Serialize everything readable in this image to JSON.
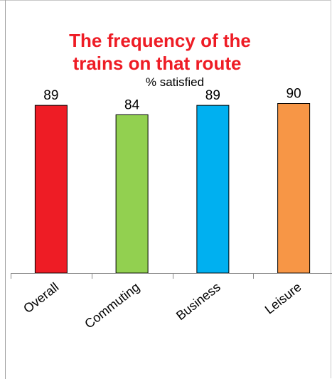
{
  "chart_data": {
    "type": "bar",
    "title": "The frequency of the trains on that route",
    "title_lines": [
      "The frequency of the",
      "trains on that route"
    ],
    "subtitle": "% satisfied",
    "categories": [
      "Overall",
      "Commuting",
      "Business",
      "Leisure"
    ],
    "values": [
      89,
      84,
      89,
      90
    ],
    "colors": [
      "#ee1c25",
      "#92d050",
      "#00b0f0",
      "#f79646"
    ],
    "ylim": [
      0,
      100
    ],
    "grid": false,
    "legend": "none",
    "xlabel": "",
    "ylabel": ""
  }
}
